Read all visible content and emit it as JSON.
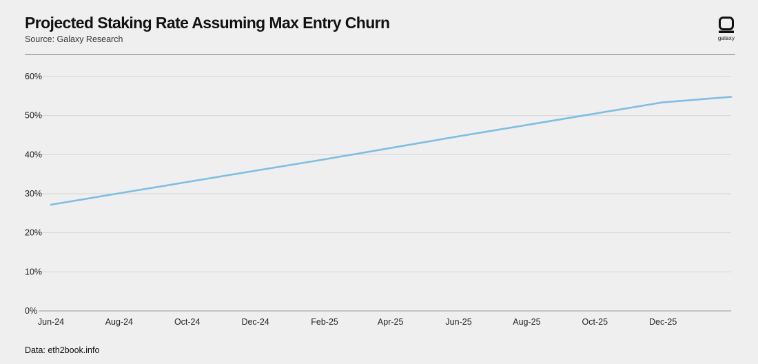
{
  "header": {
    "title": "Projected Staking Rate Assuming Max Entry Churn",
    "subtitle": "Source: Galaxy Research"
  },
  "logo": {
    "text": "galaxy",
    "icon": "galaxy-logo-icon"
  },
  "footer": {
    "text": "Data: eth2book.info"
  },
  "colors": {
    "background": "#efefef",
    "line": "#7fbde3",
    "grid": "#d6d6d6",
    "axis": "#9a9a9a"
  },
  "chart_data": {
    "type": "line",
    "title": "",
    "xlabel": "",
    "ylabel": "",
    "y_tick_labels": [
      "0%",
      "10%",
      "20%",
      "30%",
      "40%",
      "50%",
      "60%"
    ],
    "y_ticks": [
      0,
      10,
      20,
      30,
      40,
      50,
      60
    ],
    "ylim": [
      0,
      60
    ],
    "x_tick_labels": [
      "Jun-24",
      "Aug-24",
      "Oct-24",
      "Dec-24",
      "Feb-25",
      "Apr-25",
      "Jun-25",
      "Aug-25",
      "Oct-25",
      "Dec-25"
    ],
    "xlim": [
      "2024-06-01",
      "2026-01-31"
    ],
    "grid": true,
    "legend": "none",
    "series": [
      {
        "x": [
          "2024-06-01",
          "2024-08-01",
          "2024-10-01",
          "2024-12-01",
          "2025-02-01",
          "2025-04-01",
          "2025-06-01",
          "2025-08-01",
          "2025-10-01",
          "2025-12-01",
          "2026-01-31"
        ],
        "values": [
          27.2,
          30.1,
          33.0,
          35.9,
          38.8,
          41.7,
          44.7,
          47.6,
          50.5,
          53.4,
          54.8
        ]
      }
    ]
  }
}
